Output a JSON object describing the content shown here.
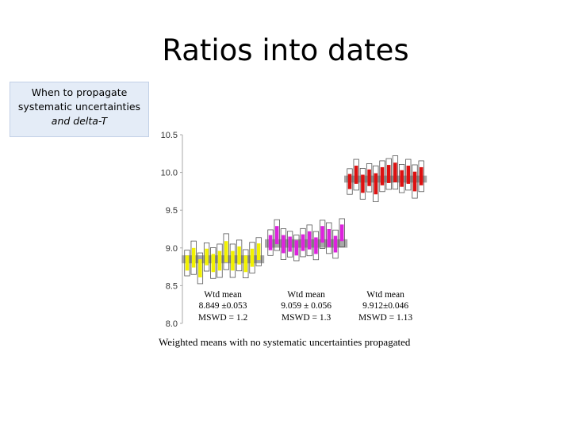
{
  "slide": {
    "title": "Ratios into dates",
    "note_line1": "When to propagate",
    "note_line2": "systematic uncertainties",
    "note_line3": "and delta-T",
    "caption": "Weighted means with no systematic uncertainties propagated"
  },
  "chart_data": {
    "type": "scatter",
    "title": "",
    "xlabel": "",
    "ylabel": "",
    "ylim": [
      8.0,
      10.5
    ],
    "yticks": [
      "10.5",
      "10.0",
      "9.5",
      "9.0",
      "8.5",
      "8.0"
    ],
    "grid": false,
    "groups": [
      {
        "color": "#f2f200",
        "mean": 8.849,
        "mean_err": 0.053,
        "label_line1": "Wtd mean",
        "label_line2": "8.849 ±0.053",
        "label_line3": "MSWD = 1.2",
        "points": [
          {
            "value": 8.8,
            "err": 0.1
          },
          {
            "value": 8.87,
            "err": 0.13
          },
          {
            "value": 8.73,
            "err": 0.12
          },
          {
            "value": 8.88,
            "err": 0.11
          },
          {
            "value": 8.8,
            "err": 0.12
          },
          {
            "value": 8.83,
            "err": 0.13
          },
          {
            "value": 8.95,
            "err": 0.14
          },
          {
            "value": 8.83,
            "err": 0.13
          },
          {
            "value": 8.9,
            "err": 0.12
          },
          {
            "value": 8.79,
            "err": 0.11
          },
          {
            "value": 8.87,
            "err": 0.12
          },
          {
            "value": 8.95,
            "err": 0.11
          }
        ]
      },
      {
        "color": "#dd22dd",
        "mean": 9.059,
        "mean_err": 0.056,
        "label_line1": "Wtd mean",
        "label_line2": "9.059 ± 0.056",
        "label_line3": "MSWD = 1.3",
        "points": [
          {
            "value": 9.07,
            "err": 0.1
          },
          {
            "value": 9.17,
            "err": 0.12
          },
          {
            "value": 9.05,
            "err": 0.12
          },
          {
            "value": 9.05,
            "err": 0.1
          },
          {
            "value": 9.0,
            "err": 0.1
          },
          {
            "value": 9.07,
            "err": 0.11
          },
          {
            "value": 9.1,
            "err": 0.12
          },
          {
            "value": 9.03,
            "err": 0.11
          },
          {
            "value": 9.18,
            "err": 0.11
          },
          {
            "value": 9.13,
            "err": 0.12
          },
          {
            "value": 9.05,
            "err": 0.11
          },
          {
            "value": 9.2,
            "err": 0.11
          }
        ]
      },
      {
        "color": "#dd1111",
        "mean": 9.912,
        "mean_err": 0.046,
        "label_line1": "Wtd mean",
        "label_line2": "9.912±0.046",
        "label_line3": "MSWD = 1.13",
        "points": [
          {
            "value": 9.88,
            "err": 0.1
          },
          {
            "value": 9.97,
            "err": 0.12
          },
          {
            "value": 9.85,
            "err": 0.12
          },
          {
            "value": 9.93,
            "err": 0.11
          },
          {
            "value": 9.85,
            "err": 0.14
          },
          {
            "value": 9.95,
            "err": 0.12
          },
          {
            "value": 9.98,
            "err": 0.12
          },
          {
            "value": 10.0,
            "err": 0.13
          },
          {
            "value": 9.92,
            "err": 0.11
          },
          {
            "value": 9.97,
            "err": 0.12
          },
          {
            "value": 9.88,
            "err": 0.13
          },
          {
            "value": 9.95,
            "err": 0.12
          }
        ]
      }
    ]
  }
}
